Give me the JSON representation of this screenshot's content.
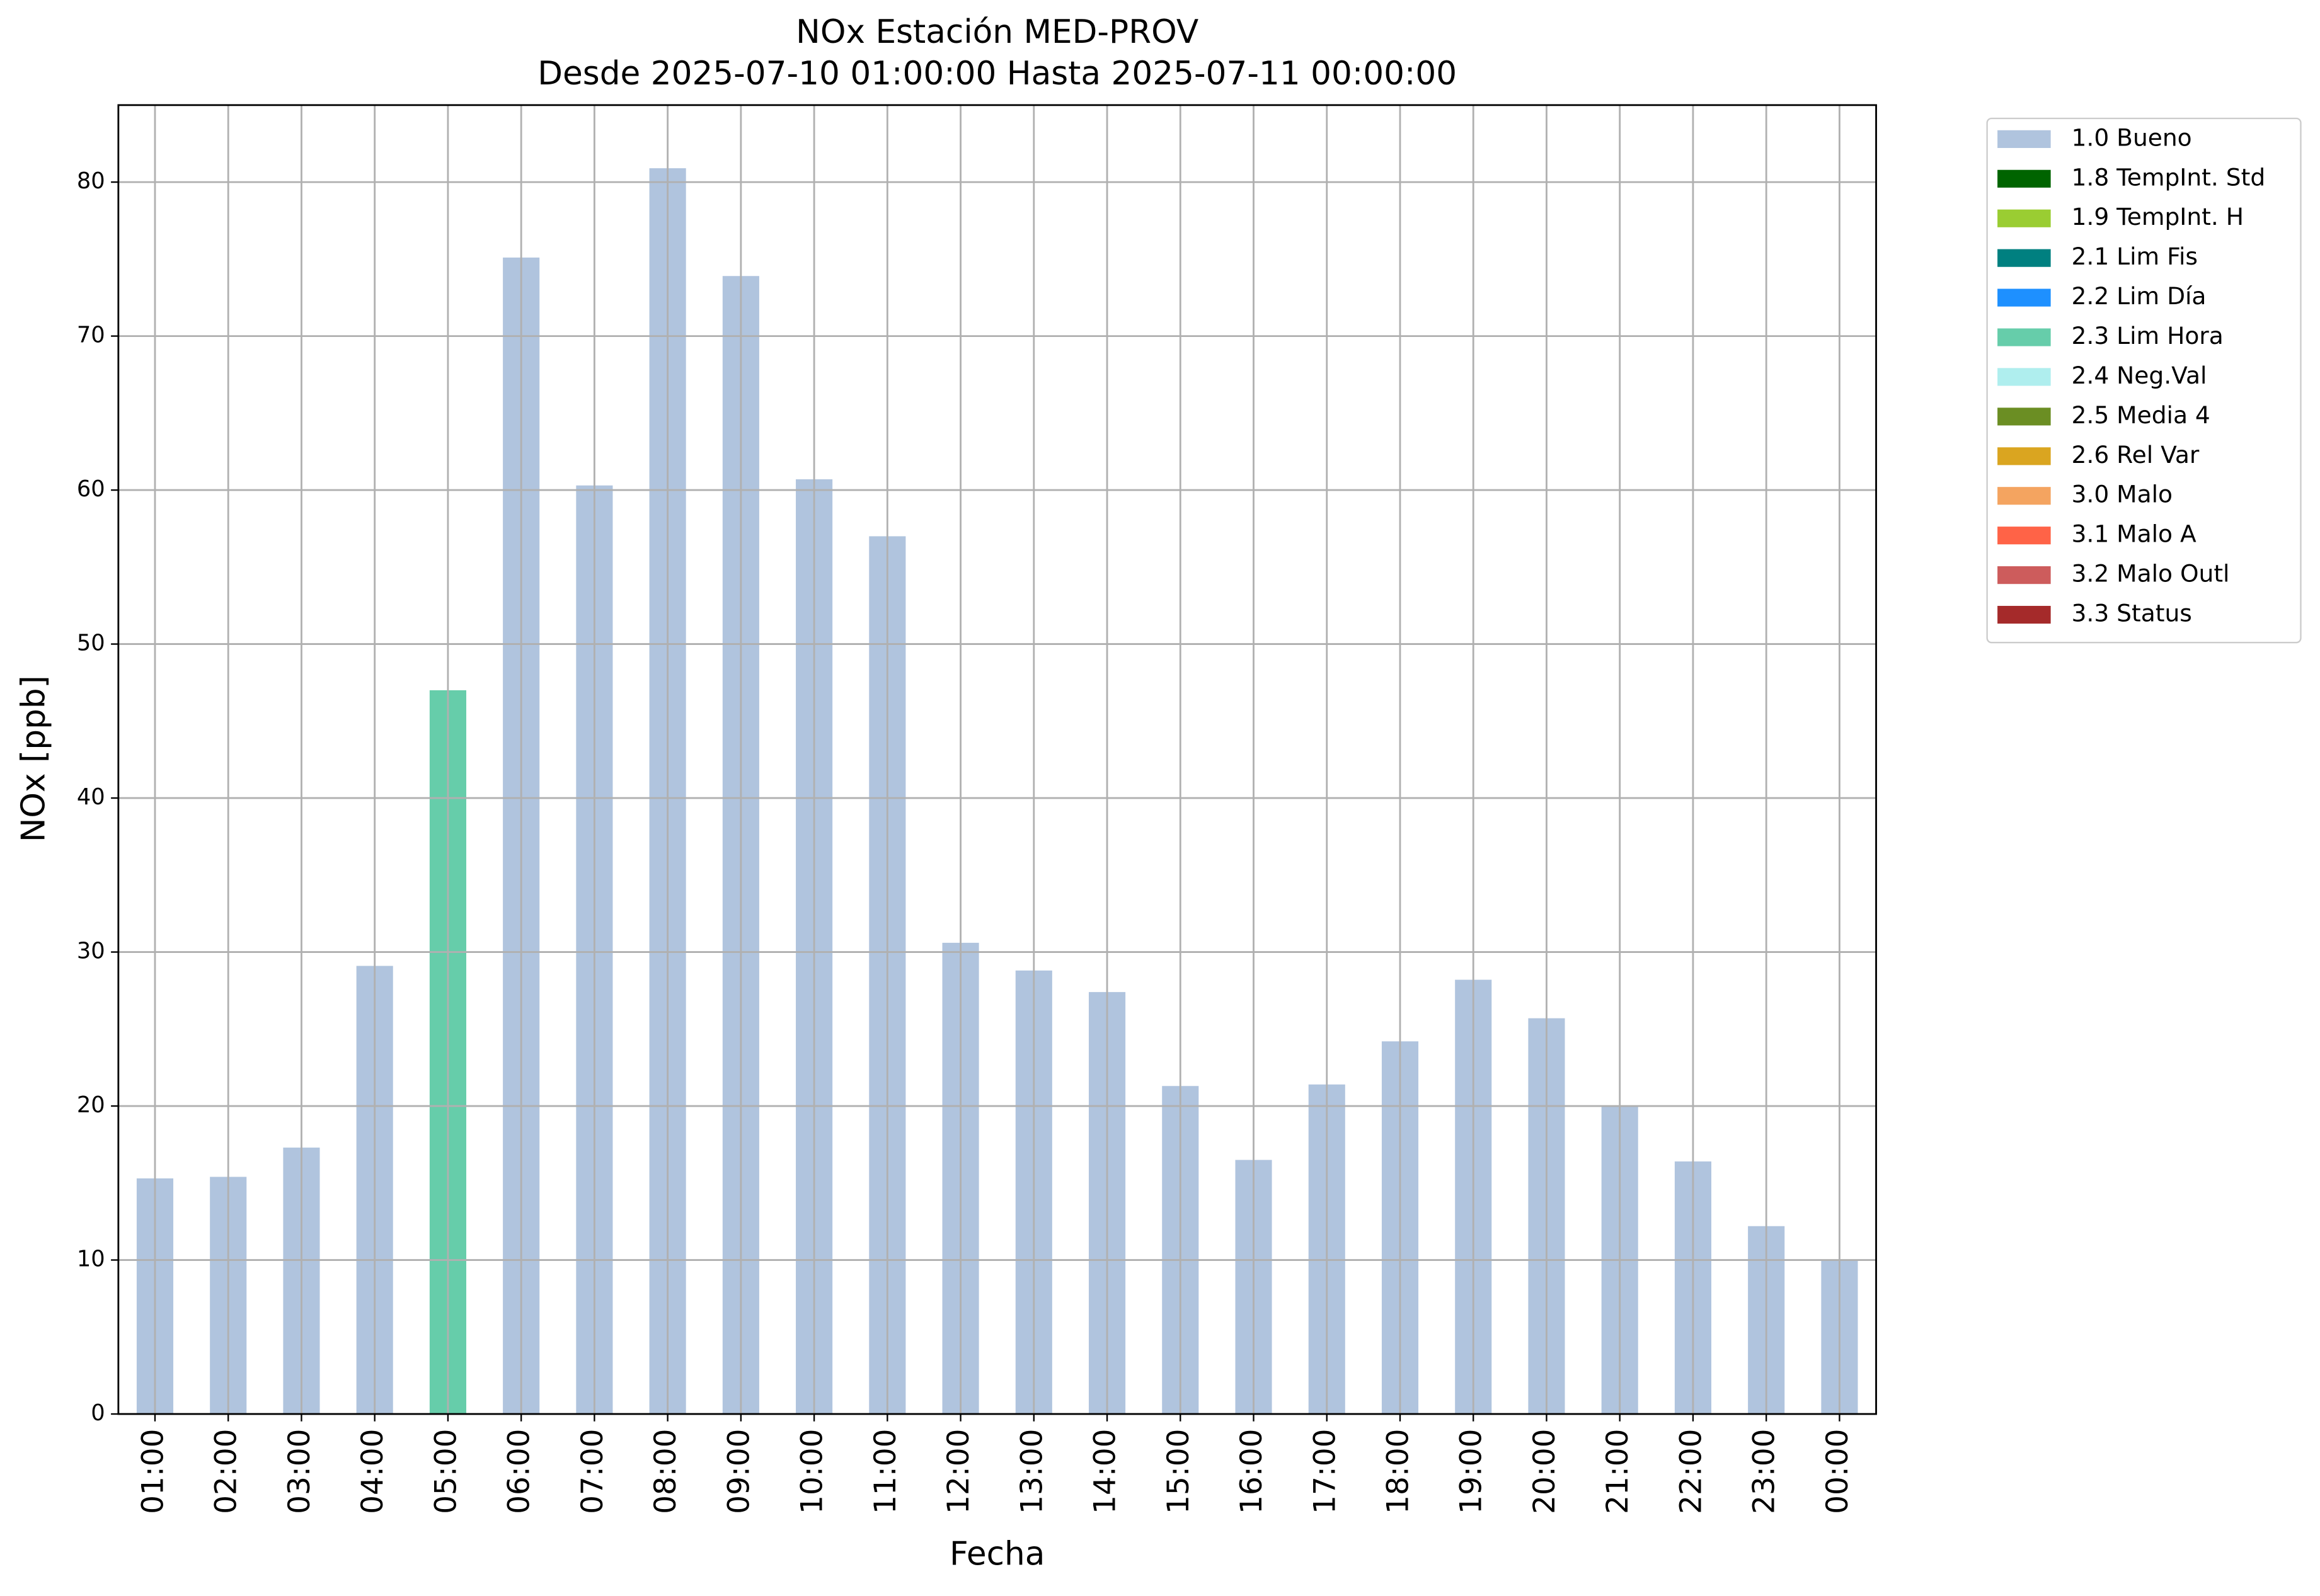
{
  "chart_data": {
    "type": "stacked_bar",
    "title": "NOx Estación MED-PROV",
    "subtitle": "Desde 2025-07-10 01:00:00 Hasta 2025-07-11 00:00:00",
    "xlabel": "Fecha",
    "ylabel": "NOx [ppb]",
    "categories": [
      "01:00",
      "02:00",
      "03:00",
      "04:00",
      "05:00",
      "06:00",
      "07:00",
      "08:00",
      "09:00",
      "10:00",
      "11:00",
      "12:00",
      "13:00",
      "14:00",
      "15:00",
      "16:00",
      "17:00",
      "18:00",
      "19:00",
      "20:00",
      "21:00",
      "22:00",
      "23:00",
      "00:00"
    ],
    "series": [
      {
        "name": "1.0 Bueno",
        "color": "#b0c4de",
        "values": [
          15.3,
          15.4,
          17.3,
          29.1,
          null,
          75.1,
          60.3,
          80.9,
          73.9,
          60.7,
          57.0,
          30.6,
          28.8,
          27.4,
          21.3,
          16.5,
          21.4,
          24.2,
          28.2,
          25.7,
          20.0,
          16.4,
          12.2,
          10.0
        ]
      },
      {
        "name": "1.8 TempInt. Std",
        "color": "#006400",
        "values": [
          null,
          null,
          null,
          null,
          null,
          null,
          null,
          null,
          null,
          null,
          null,
          null,
          null,
          null,
          null,
          null,
          null,
          null,
          null,
          null,
          null,
          null,
          null,
          null
        ]
      },
      {
        "name": "1.9 TempInt. H",
        "color": "#9acd32",
        "values": [
          null,
          null,
          null,
          null,
          null,
          null,
          null,
          null,
          null,
          null,
          null,
          null,
          null,
          null,
          null,
          null,
          null,
          null,
          null,
          null,
          null,
          null,
          null,
          null
        ]
      },
      {
        "name": "2.1 Lim Fis",
        "color": "#008080",
        "values": [
          null,
          null,
          null,
          null,
          null,
          null,
          null,
          null,
          null,
          null,
          null,
          null,
          null,
          null,
          null,
          null,
          null,
          null,
          null,
          null,
          null,
          null,
          null,
          null
        ]
      },
      {
        "name": "2.2 Lim Día",
        "color": "#1e90ff",
        "values": [
          null,
          null,
          null,
          null,
          null,
          null,
          null,
          null,
          null,
          null,
          null,
          null,
          null,
          null,
          null,
          null,
          null,
          null,
          null,
          null,
          null,
          null,
          null,
          null
        ]
      },
      {
        "name": "2.3 Lim Hora",
        "color": "#66cdaa",
        "values": [
          null,
          null,
          null,
          null,
          47.0,
          null,
          null,
          null,
          null,
          null,
          null,
          null,
          null,
          null,
          null,
          null,
          null,
          null,
          null,
          null,
          null,
          null,
          null,
          null
        ]
      },
      {
        "name": "2.4 Neg.Val",
        "color": "#afeeee",
        "values": [
          null,
          null,
          null,
          null,
          null,
          null,
          null,
          null,
          null,
          null,
          null,
          null,
          null,
          null,
          null,
          null,
          null,
          null,
          null,
          null,
          null,
          null,
          null,
          null
        ]
      },
      {
        "name": "2.5 Media 4",
        "color": "#6b8e23",
        "values": [
          null,
          null,
          null,
          null,
          null,
          null,
          null,
          null,
          null,
          null,
          null,
          null,
          null,
          null,
          null,
          null,
          null,
          null,
          null,
          null,
          null,
          null,
          null,
          null
        ]
      },
      {
        "name": "2.6 Rel Var",
        "color": "#daa520",
        "values": [
          null,
          null,
          null,
          null,
          null,
          null,
          null,
          null,
          null,
          null,
          null,
          null,
          null,
          null,
          null,
          null,
          null,
          null,
          null,
          null,
          null,
          null,
          null,
          null
        ]
      },
      {
        "name": "3.0 Malo",
        "color": "#f4a460",
        "values": [
          null,
          null,
          null,
          null,
          null,
          null,
          null,
          null,
          null,
          null,
          null,
          null,
          null,
          null,
          null,
          null,
          null,
          null,
          null,
          null,
          null,
          null,
          null,
          null
        ]
      },
      {
        "name": "3.1 Malo A",
        "color": "#ff6347",
        "values": [
          null,
          null,
          null,
          null,
          null,
          null,
          null,
          null,
          null,
          null,
          null,
          null,
          null,
          null,
          null,
          null,
          null,
          null,
          null,
          null,
          null,
          null,
          null,
          null
        ]
      },
      {
        "name": "3.2 Malo Outl",
        "color": "#cd5c5c",
        "values": [
          null,
          null,
          null,
          null,
          null,
          null,
          null,
          null,
          null,
          null,
          null,
          null,
          null,
          null,
          null,
          null,
          null,
          null,
          null,
          null,
          null,
          null,
          null,
          null
        ]
      },
      {
        "name": "3.3 Status",
        "color": "#a52a2a",
        "values": [
          null,
          null,
          null,
          null,
          null,
          null,
          null,
          null,
          null,
          null,
          null,
          null,
          null,
          null,
          null,
          null,
          null,
          null,
          null,
          null,
          null,
          null,
          null,
          null
        ]
      }
    ],
    "ylim": [
      0,
      85
    ],
    "yticks": [
      0,
      10,
      20,
      30,
      40,
      50,
      60,
      70,
      80
    ],
    "grid": true,
    "legend": "outside-upper-right"
  }
}
